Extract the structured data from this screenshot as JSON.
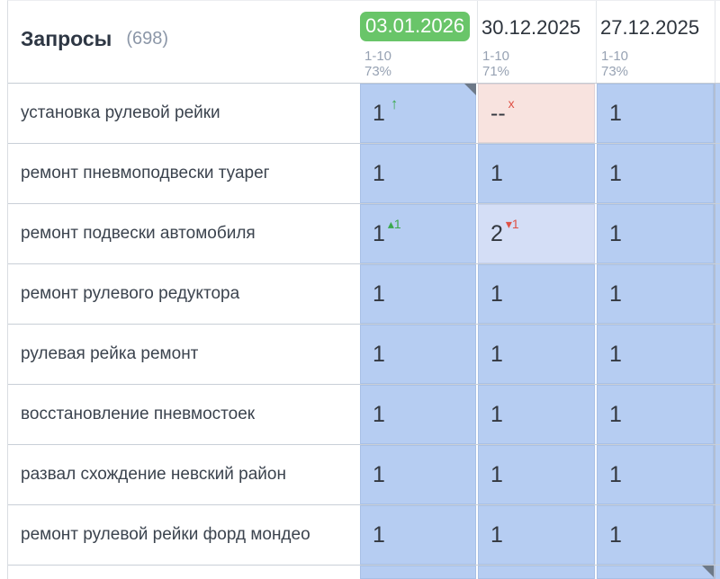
{
  "colors": {
    "badge_green": "#69c569",
    "cell_blue": "#b6cdf2",
    "cell_blue_light": "#d4def6",
    "cell_pink": "#f8e3df",
    "up_green": "#3aa84c",
    "down_red": "#df5145",
    "removed_red": "#df5145",
    "marker_gray": "#6d7988",
    "pane_divider": "#b2bed3"
  },
  "header": {
    "title": "Запросы",
    "count": "(698)",
    "columns": [
      {
        "date": "03.01.2026",
        "selected": true,
        "top_range": "1-10",
        "visibility": "73%"
      },
      {
        "date": "30.12.2025",
        "selected": false,
        "top_range": "1-10",
        "visibility": "71%"
      },
      {
        "date": "27.12.2025",
        "selected": false,
        "top_range": "1-10",
        "visibility": "73%"
      }
    ]
  },
  "table": {
    "rows": [
      {
        "query": "установка рулевой рейки",
        "cells": [
          {
            "value": "1",
            "bg": "cell_blue",
            "change": {
              "dir": "up",
              "label": "↑",
              "style": "big-arrow"
            },
            "corner_marker": true
          },
          {
            "value": "--",
            "bg": "cell_pink",
            "change": {
              "dir": "removed",
              "label": "x"
            }
          },
          {
            "value": "1",
            "bg": "cell_blue"
          }
        ]
      },
      {
        "query": "ремонт пневмоподвески туарег",
        "cells": [
          {
            "value": "1",
            "bg": "cell_blue"
          },
          {
            "value": "1",
            "bg": "cell_blue"
          },
          {
            "value": "1",
            "bg": "cell_blue"
          }
        ]
      },
      {
        "query": "ремонт подвески автомобиля",
        "cells": [
          {
            "value": "1",
            "bg": "cell_blue",
            "change": {
              "dir": "up",
              "label": "▴1"
            }
          },
          {
            "value": "2",
            "bg": "cell_blue_light",
            "change": {
              "dir": "down",
              "label": "▾1"
            }
          },
          {
            "value": "1",
            "bg": "cell_blue"
          }
        ]
      },
      {
        "query": "ремонт рулевого редуктора",
        "cells": [
          {
            "value": "1",
            "bg": "cell_blue"
          },
          {
            "value": "1",
            "bg": "cell_blue"
          },
          {
            "value": "1",
            "bg": "cell_blue"
          }
        ]
      },
      {
        "query": "рулевая рейка ремонт",
        "cells": [
          {
            "value": "1",
            "bg": "cell_blue"
          },
          {
            "value": "1",
            "bg": "cell_blue"
          },
          {
            "value": "1",
            "bg": "cell_blue"
          }
        ]
      },
      {
        "query": "восстановление пневмостоек",
        "cells": [
          {
            "value": "1",
            "bg": "cell_blue"
          },
          {
            "value": "1",
            "bg": "cell_blue"
          },
          {
            "value": "1",
            "bg": "cell_blue"
          }
        ]
      },
      {
        "query": "развал схождение невский район",
        "cells": [
          {
            "value": "1",
            "bg": "cell_blue"
          },
          {
            "value": "1",
            "bg": "cell_blue"
          },
          {
            "value": "1",
            "bg": "cell_blue"
          }
        ]
      },
      {
        "query": "ремонт рулевой рейки форд мондео",
        "cells": [
          {
            "value": "1",
            "bg": "cell_blue"
          },
          {
            "value": "1",
            "bg": "cell_blue"
          },
          {
            "value": "1",
            "bg": "cell_blue"
          }
        ]
      }
    ],
    "partial_row": {
      "cells": [
        {
          "value": "",
          "bg": "cell_blue"
        },
        {
          "value": "",
          "bg": "cell_blue"
        },
        {
          "value": "",
          "bg": "cell_blue",
          "corner_marker": true
        }
      ]
    }
  }
}
